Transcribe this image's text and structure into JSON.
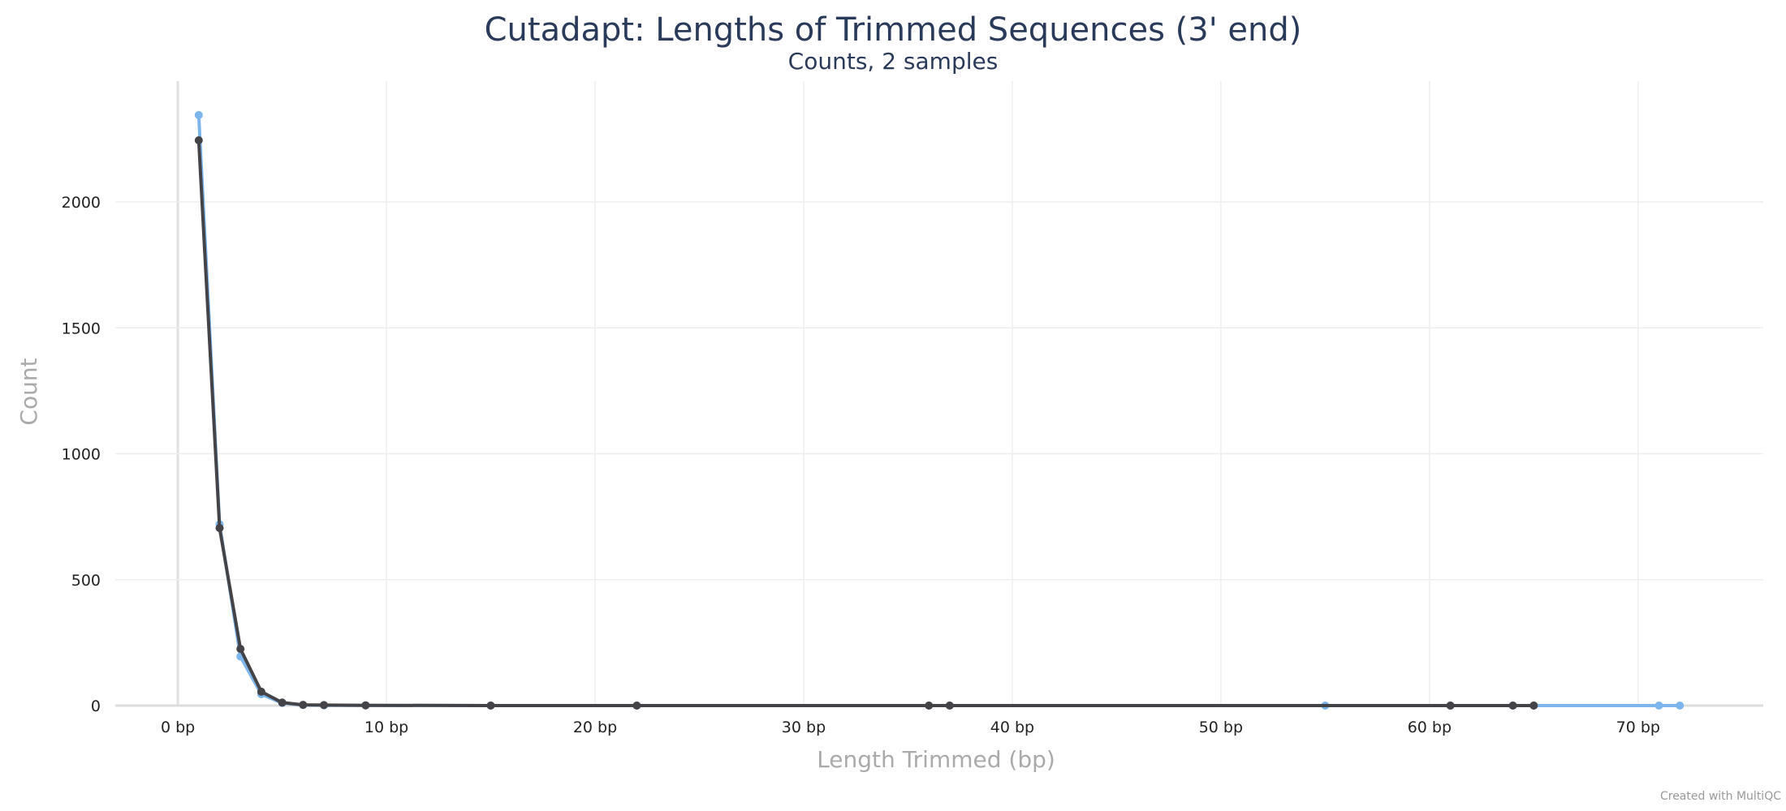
{
  "chart_data": {
    "type": "line",
    "title": "Cutadapt: Lengths of Trimmed Sequences (3' end)",
    "subtitle": "Counts, 2 samples",
    "xlabel": "Length Trimmed (bp)",
    "ylabel": "Count",
    "xlim": [
      -3,
      76
    ],
    "ylim": [
      0,
      2480
    ],
    "x_ticks": [
      0,
      10,
      20,
      30,
      40,
      50,
      60,
      70
    ],
    "x_tick_labels": [
      "0 bp",
      "10 bp",
      "20 bp",
      "30 bp",
      "40 bp",
      "50 bp",
      "60 bp",
      "70 bp"
    ],
    "y_ticks": [
      0,
      500,
      1000,
      1500,
      2000
    ],
    "y_tick_labels": [
      "0",
      "500",
      "1000",
      "1500",
      "2000"
    ],
    "grid": true,
    "legend": "none",
    "credit": "Created with MultiQC",
    "series": [
      {
        "color": "#7cb5ec",
        "points": [
          [
            1,
            2345
          ],
          [
            2,
            720
          ],
          [
            3,
            195
          ],
          [
            4,
            45
          ],
          [
            5,
            10
          ],
          [
            6,
            2
          ],
          [
            7,
            1
          ],
          [
            9,
            1
          ],
          [
            15,
            0
          ],
          [
            22,
            0
          ],
          [
            36,
            0
          ],
          [
            37,
            0
          ],
          [
            55,
            0
          ],
          [
            61,
            0
          ],
          [
            64,
            0
          ],
          [
            65,
            0
          ],
          [
            71,
            0
          ],
          [
            72,
            0
          ]
        ]
      },
      {
        "color": "#434348",
        "points": [
          [
            1,
            2245
          ],
          [
            2,
            705
          ],
          [
            3,
            225
          ],
          [
            4,
            55
          ],
          [
            5,
            12
          ],
          [
            6,
            3
          ],
          [
            7,
            2
          ],
          [
            9,
            1
          ],
          [
            15,
            0
          ],
          [
            22,
            0
          ],
          [
            36,
            0
          ],
          [
            37,
            0
          ],
          [
            61,
            0
          ],
          [
            64,
            0
          ],
          [
            65,
            0
          ]
        ]
      }
    ]
  }
}
